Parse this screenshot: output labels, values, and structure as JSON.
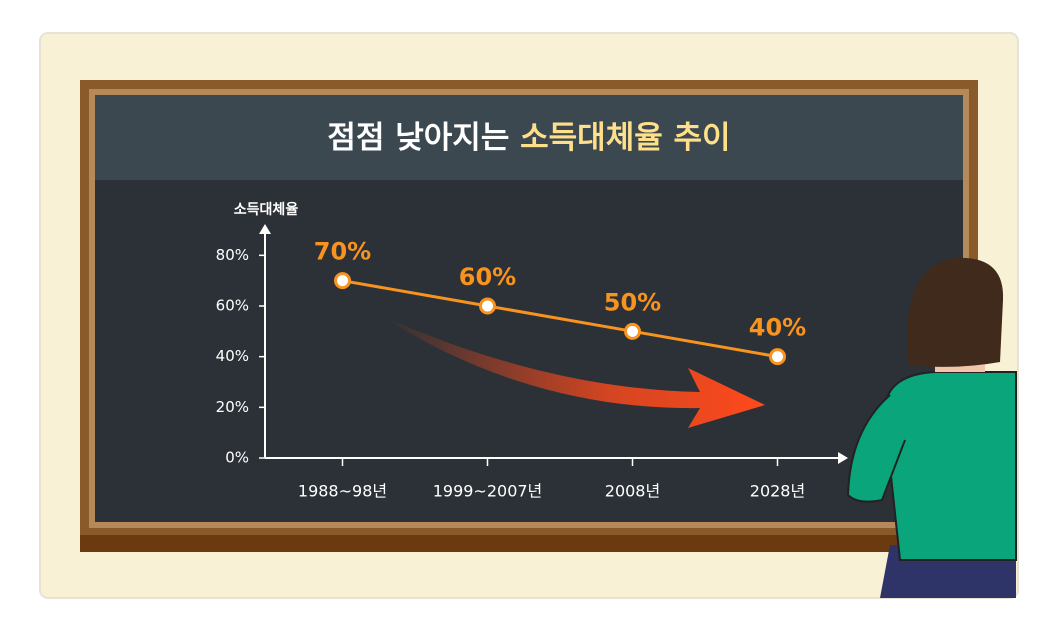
{
  "chart_data": {
    "type": "line",
    "title": [
      "점점 낮아지는",
      "소득대체율 추이"
    ],
    "y_label": "소득대체율",
    "categories": [
      "1988~98년",
      "1999~2007년",
      "2008년",
      "2028년"
    ],
    "values": [
      70,
      60,
      50,
      40
    ],
    "value_labels": [
      "70%",
      "60%",
      "50%",
      "40%"
    ],
    "color": "#f7931e",
    "ylim": [
      0,
      90
    ],
    "yticks": [
      {
        "value": 0,
        "label": "0%"
      },
      {
        "value": 20,
        "label": "20%"
      },
      {
        "value": 40,
        "label": "40%"
      },
      {
        "value": 60,
        "label": "60%"
      },
      {
        "value": 80,
        "label": "80%"
      }
    ]
  }
}
